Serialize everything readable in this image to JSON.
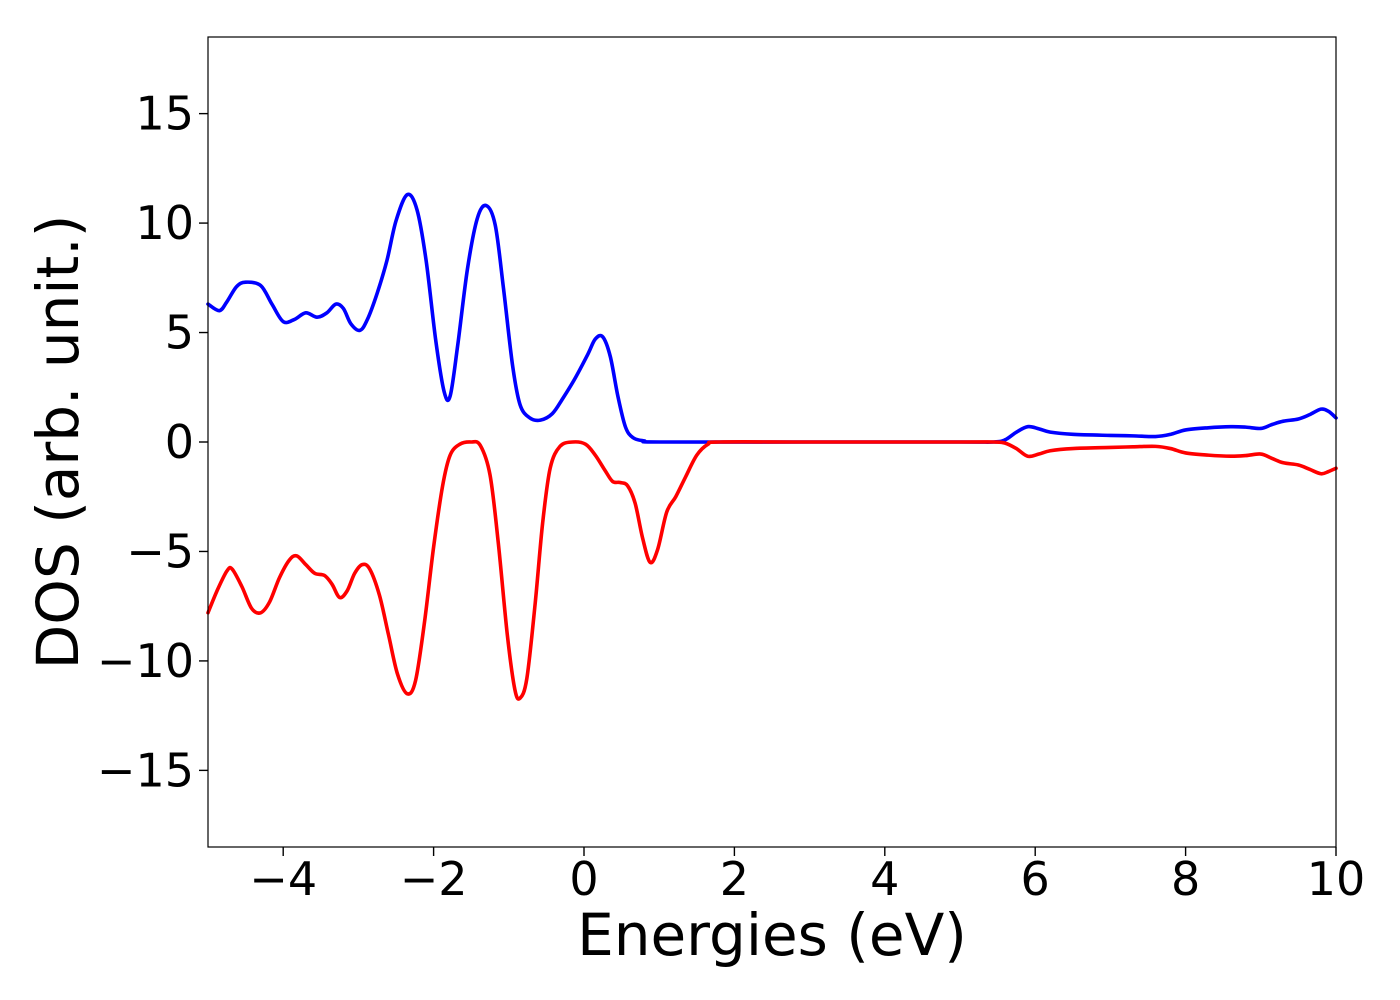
{
  "chart_data": {
    "type": "line",
    "title": "",
    "xlabel": "Energies (eV)",
    "ylabel": "DOS (arb. unit.)",
    "xlim": [
      -5,
      10
    ],
    "ylim": [
      -18.5,
      18.5
    ],
    "xticks": [
      -4,
      -2,
      0,
      2,
      4,
      6,
      8,
      10
    ],
    "xtick_labels": [
      "−4",
      "−2",
      "0",
      "2",
      "4",
      "6",
      "8",
      "10"
    ],
    "yticks": [
      -15,
      -10,
      -5,
      0,
      5,
      10,
      15
    ],
    "ytick_labels": [
      "−15",
      "−10",
      "−5",
      "0",
      "5",
      "10",
      "15"
    ],
    "grid": false,
    "legend": "none",
    "series": [
      {
        "color": "#0000ff",
        "points": [
          [
            -5.0,
            6.3
          ],
          [
            -4.85,
            6.0
          ],
          [
            -4.75,
            6.4
          ],
          [
            -4.62,
            7.1
          ],
          [
            -4.5,
            7.3
          ],
          [
            -4.3,
            7.15
          ],
          [
            -4.15,
            6.3
          ],
          [
            -4.0,
            5.5
          ],
          [
            -3.85,
            5.6
          ],
          [
            -3.7,
            5.9
          ],
          [
            -3.55,
            5.7
          ],
          [
            -3.42,
            5.9
          ],
          [
            -3.3,
            6.3
          ],
          [
            -3.2,
            6.1
          ],
          [
            -3.1,
            5.4
          ],
          [
            -2.98,
            5.1
          ],
          [
            -2.88,
            5.6
          ],
          [
            -2.75,
            6.8
          ],
          [
            -2.62,
            8.3
          ],
          [
            -2.5,
            10.1
          ],
          [
            -2.35,
            11.3
          ],
          [
            -2.22,
            10.6
          ],
          [
            -2.1,
            8.3
          ],
          [
            -1.97,
            4.6
          ],
          [
            -1.86,
            2.3
          ],
          [
            -1.78,
            2.1
          ],
          [
            -1.68,
            4.4
          ],
          [
            -1.55,
            7.9
          ],
          [
            -1.42,
            10.2
          ],
          [
            -1.3,
            10.8
          ],
          [
            -1.18,
            9.9
          ],
          [
            -1.07,
            7.0
          ],
          [
            -0.95,
            3.5
          ],
          [
            -0.85,
            1.7
          ],
          [
            -0.72,
            1.1
          ],
          [
            -0.58,
            1.0
          ],
          [
            -0.42,
            1.3
          ],
          [
            -0.28,
            2.0
          ],
          [
            -0.12,
            2.9
          ],
          [
            0.05,
            4.0
          ],
          [
            0.15,
            4.7
          ],
          [
            0.25,
            4.8
          ],
          [
            0.35,
            3.9
          ],
          [
            0.45,
            2.1
          ],
          [
            0.55,
            0.7
          ],
          [
            0.65,
            0.2
          ],
          [
            0.8,
            0.05
          ],
          [
            1.0,
            0.0
          ],
          [
            3.0,
            0.0
          ],
          [
            5.0,
            0.0
          ],
          [
            5.45,
            0.0
          ],
          [
            5.6,
            0.1
          ],
          [
            5.75,
            0.45
          ],
          [
            5.9,
            0.7
          ],
          [
            6.05,
            0.6
          ],
          [
            6.2,
            0.45
          ],
          [
            6.5,
            0.35
          ],
          [
            7.0,
            0.3
          ],
          [
            7.3,
            0.28
          ],
          [
            7.6,
            0.25
          ],
          [
            7.8,
            0.35
          ],
          [
            8.0,
            0.55
          ],
          [
            8.3,
            0.65
          ],
          [
            8.6,
            0.7
          ],
          [
            8.8,
            0.68
          ],
          [
            9.0,
            0.62
          ],
          [
            9.15,
            0.8
          ],
          [
            9.3,
            0.95
          ],
          [
            9.5,
            1.05
          ],
          [
            9.65,
            1.25
          ],
          [
            9.8,
            1.5
          ],
          [
            9.9,
            1.4
          ],
          [
            10.0,
            1.1
          ]
        ]
      },
      {
        "color": "#ff0000",
        "points": [
          [
            -5.0,
            -7.8
          ],
          [
            -4.88,
            -6.8
          ],
          [
            -4.75,
            -5.9
          ],
          [
            -4.68,
            -5.8
          ],
          [
            -4.55,
            -6.6
          ],
          [
            -4.42,
            -7.6
          ],
          [
            -4.3,
            -7.8
          ],
          [
            -4.18,
            -7.3
          ],
          [
            -4.05,
            -6.2
          ],
          [
            -3.92,
            -5.4
          ],
          [
            -3.82,
            -5.2
          ],
          [
            -3.7,
            -5.6
          ],
          [
            -3.58,
            -6.0
          ],
          [
            -3.45,
            -6.1
          ],
          [
            -3.35,
            -6.5
          ],
          [
            -3.25,
            -7.1
          ],
          [
            -3.15,
            -6.8
          ],
          [
            -3.05,
            -6.0
          ],
          [
            -2.95,
            -5.6
          ],
          [
            -2.85,
            -5.8
          ],
          [
            -2.72,
            -7.0
          ],
          [
            -2.6,
            -8.8
          ],
          [
            -2.48,
            -10.6
          ],
          [
            -2.35,
            -11.5
          ],
          [
            -2.24,
            -10.9
          ],
          [
            -2.12,
            -8.2
          ],
          [
            -2.0,
            -4.8
          ],
          [
            -1.88,
            -2.0
          ],
          [
            -1.78,
            -0.6
          ],
          [
            -1.65,
            -0.1
          ],
          [
            -1.5,
            0.0
          ],
          [
            -1.38,
            -0.15
          ],
          [
            -1.25,
            -1.5
          ],
          [
            -1.14,
            -4.6
          ],
          [
            -1.02,
            -8.8
          ],
          [
            -0.92,
            -11.3
          ],
          [
            -0.85,
            -11.7
          ],
          [
            -0.76,
            -10.8
          ],
          [
            -0.65,
            -7.4
          ],
          [
            -0.55,
            -3.7
          ],
          [
            -0.45,
            -1.2
          ],
          [
            -0.32,
            -0.2
          ],
          [
            -0.15,
            0.0
          ],
          [
            0.02,
            -0.1
          ],
          [
            0.15,
            -0.6
          ],
          [
            0.28,
            -1.3
          ],
          [
            0.38,
            -1.8
          ],
          [
            0.48,
            -1.85
          ],
          [
            0.58,
            -2.0
          ],
          [
            0.68,
            -2.8
          ],
          [
            0.78,
            -4.4
          ],
          [
            0.88,
            -5.5
          ],
          [
            0.98,
            -4.9
          ],
          [
            1.1,
            -3.2
          ],
          [
            1.22,
            -2.5
          ],
          [
            1.35,
            -1.6
          ],
          [
            1.5,
            -0.6
          ],
          [
            1.65,
            -0.1
          ],
          [
            1.8,
            0.0
          ],
          [
            3.0,
            0.0
          ],
          [
            5.0,
            0.0
          ],
          [
            5.45,
            0.0
          ],
          [
            5.6,
            -0.05
          ],
          [
            5.75,
            -0.3
          ],
          [
            5.9,
            -0.65
          ],
          [
            6.05,
            -0.55
          ],
          [
            6.2,
            -0.4
          ],
          [
            6.5,
            -0.3
          ],
          [
            7.0,
            -0.25
          ],
          [
            7.3,
            -0.22
          ],
          [
            7.6,
            -0.2
          ],
          [
            7.8,
            -0.3
          ],
          [
            8.0,
            -0.5
          ],
          [
            8.3,
            -0.6
          ],
          [
            8.6,
            -0.65
          ],
          [
            8.8,
            -0.62
          ],
          [
            9.0,
            -0.55
          ],
          [
            9.15,
            -0.75
          ],
          [
            9.3,
            -0.95
          ],
          [
            9.5,
            -1.05
          ],
          [
            9.65,
            -1.25
          ],
          [
            9.8,
            -1.45
          ],
          [
            9.9,
            -1.35
          ],
          [
            10.0,
            -1.2
          ]
        ]
      }
    ]
  }
}
